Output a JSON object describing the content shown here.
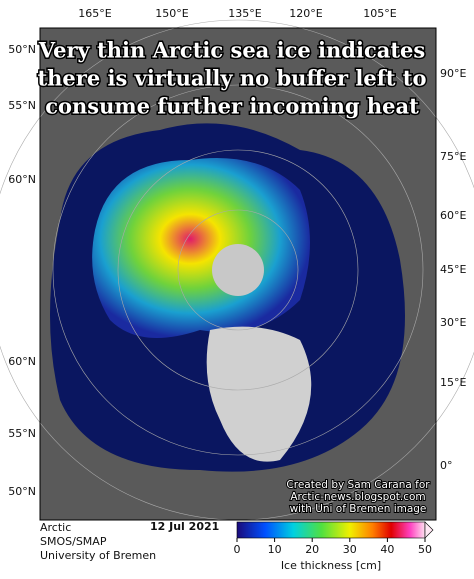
{
  "header": {
    "title_lines": [
      "Very thin Arctic sea ice indicates",
      "there is virtually no buffer left to",
      "consume further incoming heat"
    ]
  },
  "map": {
    "top_labels": [
      "165°E",
      "150°E",
      "135°E",
      "120°E",
      "105°E"
    ],
    "left_labels": [
      "50°N",
      "55°N",
      "60°N",
      "60°N",
      "55°N",
      "50°N"
    ],
    "right_labels": [
      "90°E",
      "75°E",
      "60°E",
      "45°E",
      "30°E",
      "15°E",
      "0°"
    ],
    "credit_lines": [
      "Created by Sam Carana for",
      "Arctic-news.blogspot.com",
      "with Uni of Bremen image"
    ]
  },
  "footer": {
    "region": "Arctic",
    "product": "SMOS/SMAP",
    "source": "University of Bremen",
    "date": "12 Jul 2021"
  },
  "colorbar": {
    "label": "Ice thickness [cm]",
    "range": [
      0,
      50
    ],
    "ticks": [
      0,
      10,
      20,
      30,
      40,
      50
    ]
  }
}
